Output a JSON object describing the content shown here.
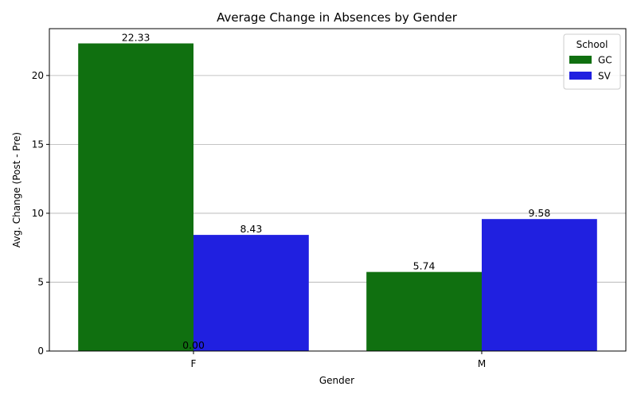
{
  "chart_data": {
    "type": "bar",
    "title": "Average Change in Absences by Gender",
    "xlabel": "Gender",
    "ylabel": "Avg. Change (Post - Pre)",
    "categories": [
      "F",
      "M"
    ],
    "series": [
      {
        "name": "GC",
        "color": "#107010",
        "values": [
          22.33,
          5.74
        ],
        "labels": [
          "22.33",
          "5.74"
        ]
      },
      {
        "name": "SV",
        "color": "#2020e0",
        "values": [
          8.43,
          9.58
        ],
        "labels": [
          "8.43",
          "9.58"
        ]
      }
    ],
    "extra_labels": [
      {
        "category": "F",
        "text": "0.00"
      }
    ],
    "ylim": [
      0,
      23.4
    ],
    "yticks": [
      0,
      5,
      10,
      15,
      20
    ],
    "grid": "y",
    "legend": {
      "title": "School",
      "position": "top-right"
    }
  }
}
